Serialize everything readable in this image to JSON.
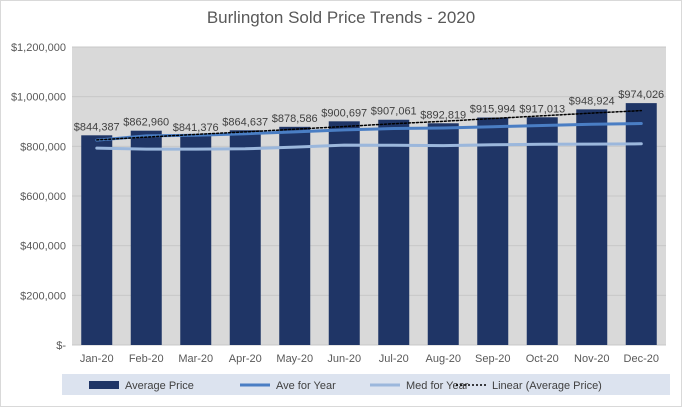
{
  "chart_data": {
    "type": "bar",
    "title": "Burlington Sold Price Trends - 2020",
    "categories": [
      "Jan-20",
      "Feb-20",
      "Mar-20",
      "Apr-20",
      "May-20",
      "Jun-20",
      "Jul-20",
      "Aug-20",
      "Sep-20",
      "Oct-20",
      "Nov-20",
      "Dec-20"
    ],
    "series": [
      {
        "name": "Average Price",
        "kind": "bar",
        "values": [
          844387,
          862960,
          841376,
          864637,
          878586,
          900697,
          907061,
          892819,
          915994,
          917013,
          948924,
          974026
        ],
        "labels": [
          "$844,387",
          "$862,960",
          "$841,376",
          "$864,637",
          "$878,586",
          "$900,697",
          "$907,061",
          "$892,819",
          "$915,994",
          "$917,013",
          "$948,924",
          "$974,026"
        ]
      },
      {
        "name": "Ave for Year",
        "kind": "line",
        "values": [
          825000,
          842000,
          845000,
          851000,
          858000,
          866000,
          872000,
          874000,
          879000,
          884000,
          889000,
          892000
        ]
      },
      {
        "name": "Med for Year",
        "kind": "line",
        "values": [
          793000,
          789000,
          789000,
          790000,
          797000,
          805000,
          804000,
          803000,
          806000,
          808000,
          809000,
          810000
        ]
      },
      {
        "name": "Linear (Average Price)",
        "kind": "trendline",
        "values": [
          826000,
          837000,
          848000,
          858000,
          869000,
          880000,
          891000,
          901000,
          912000,
          923000,
          934000,
          944000
        ]
      }
    ],
    "yticks": [
      "$-",
      "$200,000",
      "$400,000",
      "$600,000",
      "$800,000",
      "$1,000,000",
      "$1,200,000"
    ],
    "ylim": [
      0,
      1200000
    ],
    "grid": true,
    "legend_position": "bottom",
    "colors": {
      "bar": "#1f3566",
      "ave_line": "#4a7ec4",
      "med_line": "#9bb7dc",
      "trend": "#000000",
      "plot_bg": "#d9d9d9",
      "legend_bg": "#dce3ef"
    }
  }
}
